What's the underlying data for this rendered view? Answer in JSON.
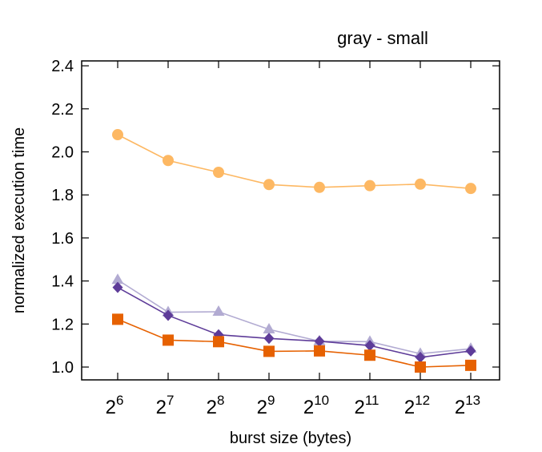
{
  "chart_data": {
    "type": "line",
    "title": "gray - small",
    "xlabel": "burst size (bytes)",
    "ylabel": "normalized execution time",
    "x_ticks": [
      {
        "base": "2",
        "exp": "6"
      },
      {
        "base": "2",
        "exp": "7"
      },
      {
        "base": "2",
        "exp": "8"
      },
      {
        "base": "2",
        "exp": "9"
      },
      {
        "base": "2",
        "exp": "10"
      },
      {
        "base": "2",
        "exp": "11"
      },
      {
        "base": "2",
        "exp": "12"
      },
      {
        "base": "2",
        "exp": "13"
      }
    ],
    "y_ticks": [
      "1.0",
      "1.2",
      "1.4",
      "1.6",
      "1.8",
      "2.0",
      "2.2",
      "2.4"
    ],
    "ylim": [
      0.95,
      2.42
    ],
    "grid": false,
    "legend": "none",
    "series": [
      {
        "marker": "circle",
        "color": "#fdb863",
        "values": [
          2.08,
          1.96,
          1.905,
          1.848,
          1.835,
          1.843,
          1.85,
          1.83
        ]
      },
      {
        "marker": "triangle",
        "color": "#b2abd2",
        "values": [
          1.405,
          1.255,
          1.257,
          1.175,
          1.12,
          1.118,
          1.062,
          1.085
        ]
      },
      {
        "marker": "diamond",
        "color": "#5e3c99",
        "values": [
          1.37,
          1.24,
          1.15,
          1.133,
          1.12,
          1.1,
          1.045,
          1.075
        ]
      },
      {
        "marker": "square",
        "color": "#e66101",
        "values": [
          1.222,
          1.125,
          1.118,
          1.073,
          1.075,
          1.055,
          1.0,
          1.008
        ]
      }
    ]
  }
}
